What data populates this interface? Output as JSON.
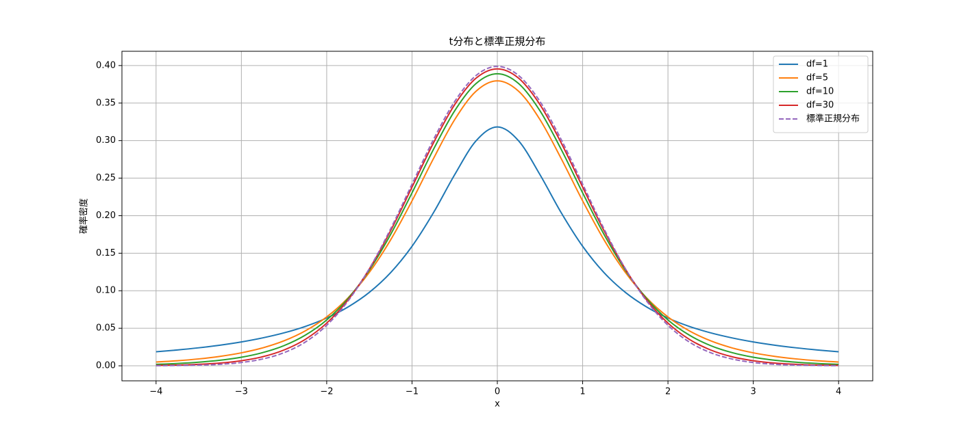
{
  "chart_data": {
    "type": "line",
    "title": "t分布と標準正規分布",
    "x_label": "x",
    "y_label": "確率密度",
    "x": [
      -4,
      -3.75,
      -3.5,
      -3.25,
      -3,
      -2.75,
      -2.5,
      -2.25,
      -2,
      -1.75,
      -1.5,
      -1.25,
      -1,
      -0.75,
      -0.5,
      -0.25,
      0,
      0.25,
      0.5,
      0.75,
      1,
      1.25,
      1.5,
      1.75,
      2,
      2.25,
      2.5,
      2.75,
      3,
      3.25,
      3.5,
      3.75,
      4
    ],
    "series": [
      {
        "name": "df=1",
        "color": "#1f77b4",
        "linestyle": "solid",
        "values": [
          0.0187,
          0.0211,
          0.024,
          0.0275,
          0.0318,
          0.0372,
          0.0439,
          0.0525,
          0.0637,
          0.0784,
          0.0979,
          0.1242,
          0.1592,
          0.2037,
          0.2546,
          0.2996,
          0.3183,
          0.2996,
          0.2546,
          0.2037,
          0.1592,
          0.1242,
          0.0979,
          0.0784,
          0.0637,
          0.0525,
          0.0439,
          0.0372,
          0.0318,
          0.0275,
          0.024,
          0.0211,
          0.0187
        ]
      },
      {
        "name": "df=5",
        "color": "#ff7f0e",
        "linestyle": "solid",
        "values": [
          0.0051,
          0.0068,
          0.0092,
          0.0126,
          0.0173,
          0.0239,
          0.0333,
          0.0466,
          0.0651,
          0.0905,
          0.1245,
          0.1679,
          0.2197,
          0.2757,
          0.3279,
          0.3657,
          0.3796,
          0.3657,
          0.3279,
          0.2757,
          0.2197,
          0.1679,
          0.1245,
          0.0905,
          0.0651,
          0.0466,
          0.0333,
          0.0239,
          0.0173,
          0.0126,
          0.0092,
          0.0068,
          0.0051
        ]
      },
      {
        "name": "df=10",
        "color": "#2ca02c",
        "linestyle": "solid",
        "values": [
          0.002,
          0.0031,
          0.0048,
          0.0074,
          0.0114,
          0.0176,
          0.0269,
          0.0409,
          0.0611,
          0.0896,
          0.1275,
          0.1751,
          0.2304,
          0.288,
          0.3397,
          0.376,
          0.3891,
          0.376,
          0.3397,
          0.288,
          0.2304,
          0.1751,
          0.1275,
          0.0896,
          0.0611,
          0.0409,
          0.0269,
          0.0176,
          0.0114,
          0.0074,
          0.0048,
          0.0031,
          0.002
        ]
      },
      {
        "name": "df=30",
        "color": "#d62728",
        "linestyle": "solid",
        "values": [
          0.0005,
          0.001,
          0.002,
          0.0037,
          0.0068,
          0.0121,
          0.0211,
          0.0353,
          0.0569,
          0.0877,
          0.129,
          0.1801,
          0.238,
          0.2966,
          0.3479,
          0.3831,
          0.3956,
          0.3831,
          0.3479,
          0.2966,
          0.238,
          0.1801,
          0.129,
          0.0877,
          0.0569,
          0.0353,
          0.0211,
          0.0121,
          0.0068,
          0.0037,
          0.002,
          0.001,
          0.0005
        ]
      },
      {
        "name": "標準正規分布",
        "color": "#9467bd",
        "linestyle": "dashed",
        "values": [
          0.0001,
          0.0004,
          0.0009,
          0.002,
          0.0044,
          0.0091,
          0.0175,
          0.0317,
          0.054,
          0.0863,
          0.1295,
          0.1826,
          0.242,
          0.3011,
          0.3521,
          0.3867,
          0.3989,
          0.3867,
          0.3521,
          0.3011,
          0.242,
          0.1826,
          0.1295,
          0.0863,
          0.054,
          0.0317,
          0.0175,
          0.0091,
          0.0044,
          0.002,
          0.0009,
          0.0004,
          0.0001
        ]
      }
    ],
    "xlim": [
      -4.4,
      4.4
    ],
    "ylim": [
      -0.02,
      0.419
    ],
    "xticks": [
      {
        "value": -4,
        "label": "−4"
      },
      {
        "value": -3,
        "label": "−3"
      },
      {
        "value": -2,
        "label": "−2"
      },
      {
        "value": -1,
        "label": "−1"
      },
      0,
      1,
      2,
      3,
      4
    ],
    "yticks": [
      {
        "value": 0,
        "label": "0.00"
      },
      {
        "value": 0.05,
        "label": "0.05"
      },
      {
        "value": 0.1,
        "label": "0.10"
      },
      {
        "value": 0.15,
        "label": "0.15"
      },
      {
        "value": 0.2,
        "label": "0.20"
      },
      {
        "value": 0.25,
        "label": "0.25"
      },
      {
        "value": 0.3,
        "label": "0.30"
      },
      {
        "value": 0.35,
        "label": "0.35"
      },
      {
        "value": 0.4,
        "label": "0.40"
      }
    ],
    "grid": true,
    "legend": "upper right"
  }
}
